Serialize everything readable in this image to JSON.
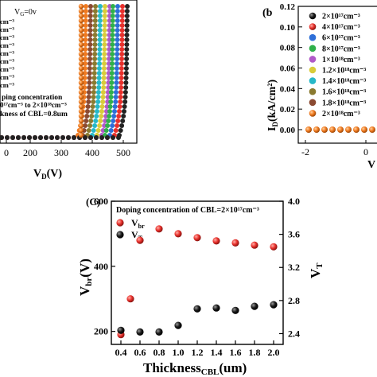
{
  "panel_a": {
    "vg_label": "V",
    "vg_sub": "G",
    "vg_val": "=0v",
    "legend_rows": [
      "cm⁻³",
      "cm⁻³",
      "cm⁻³",
      "cm⁻³",
      "cm⁻³",
      "cm⁻³",
      "cm⁻³",
      "cm⁻³",
      "cm⁻³"
    ],
    "note_line1": "ping concentration",
    "note_line2": "0¹⁷cm⁻³ to 2×10¹⁸cm⁻³",
    "note_line3": "kness of CBL=0.8um",
    "xlabel_main": "V",
    "xlabel_sub": "D",
    "xlabel_unit": "(V)",
    "xticks": [
      "0",
      "200",
      "300",
      "400",
      "500"
    ]
  },
  "panel_b": {
    "tag": "(b",
    "ylabel": "I",
    "ylabel_sub": "D",
    "ylabel_unit": "(kA/cm²)",
    "yticks": [
      "0.12",
      "0.10",
      "0.08",
      "0.06",
      "0.04",
      "0.02",
      "0.00"
    ],
    "xticks": [
      "-2",
      "0"
    ],
    "xlabel_main": "V",
    "legend": [
      {
        "label": "2×10¹⁷cm⁻³",
        "color": "#222222"
      },
      {
        "label": "4×10¹⁷cm⁻³",
        "color": "#e8302c"
      },
      {
        "label": "6×10¹⁷cm⁻³",
        "color": "#2e6fd8"
      },
      {
        "label": "8×10¹⁷cm⁻³",
        "color": "#2fb04a"
      },
      {
        "label": "1×10¹⁸cm⁻³",
        "color": "#b05ac8"
      },
      {
        "label": "1.2×10¹⁸cm⁻³",
        "color": "#d9cc3a"
      },
      {
        "label": "1.4×10¹⁸cm⁻³",
        "color": "#27b8c8"
      },
      {
        "label": "1.6×10¹⁸cm⁻³",
        "color": "#8a7a30"
      },
      {
        "label": "1.8×10¹⁸cm⁻³",
        "color": "#8b4a32"
      },
      {
        "label": "2×10¹⁸cm⁻³",
        "color": "#f07a20"
      }
    ]
  },
  "chart_data": {
    "type": "scatter",
    "tag": "(C)",
    "title": "Doping concentration of CBL=2×10¹⁷cm⁻³",
    "xlabel": "Thickness",
    "xlabel_sub": "CBL",
    "xlabel_unit": "(um)",
    "ylabel_left": "V",
    "ylabel_left_sub": "br",
    "ylabel_left_unit": "(V)",
    "ylabel_right": "V",
    "ylabel_right_sub": "T",
    "x_ticks": [
      "0.4",
      "0.6",
      "0.8",
      "1.0",
      "1.2",
      "1.4",
      "1.6",
      "1.8",
      "2.0"
    ],
    "y_left_ticks": [
      "200",
      "400",
      "600"
    ],
    "y_right_ticks": [
      "2.4",
      "2.8",
      "3.2",
      "3.6",
      "4.0"
    ],
    "xlim": [
      0.3,
      2.1
    ],
    "ylim_left": [
      160,
      600
    ],
    "ylim_right": [
      2.27,
      4.0
    ],
    "legend_position": "top-left",
    "series": [
      {
        "name": "V",
        "name_sub": "br",
        "axis": "left",
        "color": "#e8302c",
        "x": [
          0.4,
          0.5,
          0.6,
          0.8,
          1.0,
          1.2,
          1.4,
          1.6,
          1.8,
          2.0
        ],
        "y": [
          190,
          300,
          480,
          515,
          500,
          488,
          478,
          472,
          465,
          460
        ]
      },
      {
        "name": "V",
        "name_sub": "T",
        "axis": "right",
        "color": "#111111",
        "x": [
          0.4,
          0.5,
          0.6,
          0.8,
          1.0,
          1.2,
          1.4,
          1.6,
          1.8,
          2.0
        ],
        "y": [
          2.44,
          null,
          2.42,
          2.42,
          2.5,
          2.7,
          2.71,
          2.68,
          2.73,
          2.75
        ]
      }
    ]
  }
}
